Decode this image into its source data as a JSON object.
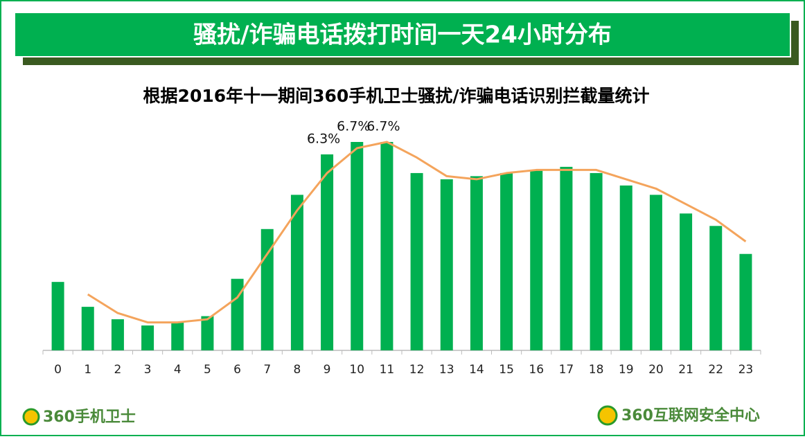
{
  "chart_data": {
    "type": "bar",
    "title": "骚扰/诈骗电话拨打时间一天24小时分布",
    "subtitle": "根据2016年十一期间360手机卫士骚扰/诈骗电话识别拦截量统计",
    "categories": [
      "0",
      "1",
      "2",
      "3",
      "4",
      "5",
      "6",
      "7",
      "8",
      "9",
      "10",
      "11",
      "12",
      "13",
      "14",
      "15",
      "16",
      "17",
      "18",
      "19",
      "20",
      "21",
      "22",
      "23"
    ],
    "series": [
      {
        "type": "bar",
        "color": "#00b050",
        "values": [
          2.2,
          1.4,
          1.0,
          0.8,
          0.9,
          1.1,
          2.3,
          3.9,
          5.0,
          6.3,
          6.7,
          6.7,
          5.7,
          5.5,
          5.6,
          5.7,
          5.8,
          5.9,
          5.7,
          5.3,
          5.0,
          4.4,
          4.0,
          3.1
        ],
        "value_labels": [
          null,
          null,
          null,
          null,
          null,
          null,
          null,
          null,
          null,
          "6.3%",
          "6.7%",
          "6.7%",
          null,
          null,
          null,
          null,
          null,
          null,
          null,
          null,
          null,
          null,
          null,
          null
        ]
      },
      {
        "type": "line",
        "color": "#f4a45c",
        "values": [
          null,
          1.8,
          1.2,
          0.9,
          0.9,
          1.0,
          1.7,
          3.1,
          4.5,
          5.7,
          6.5,
          6.7,
          6.2,
          5.6,
          5.5,
          5.7,
          5.8,
          5.8,
          5.8,
          5.5,
          5.2,
          4.7,
          4.2,
          3.5
        ]
      }
    ]
  },
  "footer": {
    "left": "360手机卫士",
    "right": "360互联网安全中心"
  }
}
